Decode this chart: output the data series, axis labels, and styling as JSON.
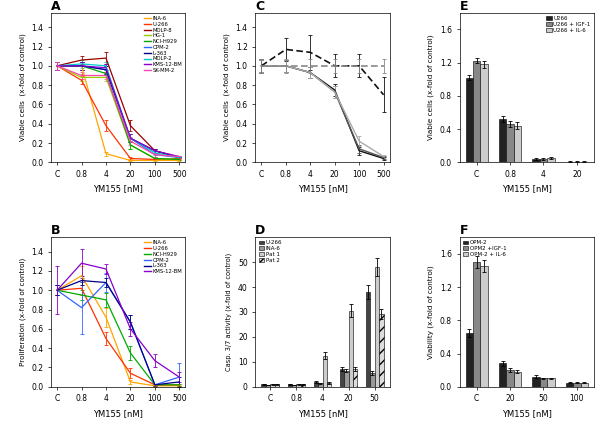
{
  "panel_A": {
    "title": "A",
    "xlabel": "YM155 [nM]",
    "ylabel": "Viable cells  (x-fold of control)",
    "xtick_labels": [
      "C",
      "0.8",
      "4",
      "20",
      "100",
      "500"
    ],
    "ylim": [
      0,
      1.55
    ],
    "yticks": [
      0.0,
      0.2,
      0.4,
      0.6,
      0.8,
      1.0,
      1.2,
      1.4
    ],
    "lines": {
      "INA-6": {
        "color": "#FFA500",
        "values": [
          1.0,
          1.0,
          0.09,
          0.02,
          0.02,
          0.02
        ]
      },
      "U-266": {
        "color": "#FF3300",
        "values": [
          1.0,
          0.85,
          0.38,
          0.04,
          0.03,
          0.04
        ]
      },
      "MOLP-8": {
        "color": "#990000",
        "values": [
          1.0,
          1.06,
          1.08,
          0.38,
          0.12,
          0.05
        ]
      },
      "HG-1": {
        "color": "#99CC00",
        "values": [
          1.0,
          0.88,
          0.88,
          0.18,
          0.04,
          0.03
        ]
      },
      "NCI-H929": {
        "color": "#00AA00",
        "values": [
          1.0,
          1.0,
          0.92,
          0.18,
          0.04,
          0.03
        ]
      },
      "OPM-2": {
        "color": "#3366FF",
        "values": [
          1.0,
          1.0,
          0.96,
          0.25,
          0.08,
          0.05
        ]
      },
      "L-363": {
        "color": "#000088",
        "values": [
          1.0,
          1.0,
          0.96,
          0.25,
          0.12,
          0.05
        ]
      },
      "MOLP-2": {
        "color": "#00CCCC",
        "values": [
          1.0,
          1.02,
          1.0,
          0.25,
          0.1,
          0.05
        ]
      },
      "KMS-12-BM": {
        "color": "#8800CC",
        "values": [
          1.0,
          1.0,
          0.98,
          0.25,
          0.12,
          0.06
        ]
      },
      "SK-MM-2": {
        "color": "#FF44AA",
        "values": [
          1.0,
          0.9,
          0.9,
          0.22,
          0.08,
          0.06
        ]
      }
    },
    "error_bars": {
      "INA-6": [
        0.04,
        0.04,
        0.02,
        0.01,
        0.01,
        0.01
      ],
      "U-266": [
        0.04,
        0.04,
        0.06,
        0.02,
        0.01,
        0.01
      ],
      "MOLP-8": [
        0.04,
        0.04,
        0.06,
        0.06,
        0.02,
        0.01
      ],
      "HG-1": [
        0.04,
        0.04,
        0.04,
        0.04,
        0.02,
        0.01
      ],
      "NCI-H929": [
        0.04,
        0.04,
        0.04,
        0.04,
        0.02,
        0.01
      ],
      "OPM-2": [
        0.04,
        0.04,
        0.04,
        0.04,
        0.02,
        0.01
      ],
      "L-363": [
        0.04,
        0.04,
        0.04,
        0.04,
        0.02,
        0.01
      ],
      "MOLP-2": [
        0.04,
        0.04,
        0.04,
        0.04,
        0.02,
        0.01
      ],
      "KMS-12-BM": [
        0.04,
        0.04,
        0.04,
        0.04,
        0.02,
        0.01
      ],
      "SK-MM-2": [
        0.04,
        0.04,
        0.04,
        0.04,
        0.02,
        0.01
      ]
    }
  },
  "panel_B": {
    "title": "B",
    "xlabel": "YM155 [nM]",
    "ylabel": "Proliferation (x-fold of control)",
    "xtick_labels": [
      "C",
      "0.8",
      "4",
      "20",
      "100",
      "500"
    ],
    "ylim": [
      0,
      1.55
    ],
    "yticks": [
      0.0,
      0.2,
      0.4,
      0.6,
      0.8,
      1.0,
      1.2,
      1.4
    ],
    "lines": {
      "INA-6": {
        "color": "#FFA500",
        "values": [
          1.0,
          1.15,
          0.72,
          0.05,
          0.01,
          0.01
        ]
      },
      "U-266": {
        "color": "#FF3300",
        "values": [
          1.0,
          1.02,
          0.5,
          0.14,
          0.02,
          0.02
        ]
      },
      "NCI-H929": {
        "color": "#00AA00",
        "values": [
          1.0,
          0.95,
          0.9,
          0.35,
          0.02,
          0.02
        ]
      },
      "OPM-2": {
        "color": "#3366FF",
        "values": [
          1.0,
          0.82,
          1.08,
          0.67,
          0.02,
          0.1
        ]
      },
      "L-363": {
        "color": "#000088",
        "values": [
          1.0,
          1.1,
          1.08,
          0.67,
          0.02,
          0.05
        ]
      },
      "KMS-12-BM": {
        "color": "#8800CC",
        "values": [
          1.0,
          1.28,
          1.22,
          0.6,
          0.27,
          0.1
        ]
      }
    },
    "error_bars": {
      "INA-6": [
        0.05,
        0.1,
        0.1,
        0.02,
        0.01,
        0.01
      ],
      "U-266": [
        0.05,
        0.07,
        0.07,
        0.05,
        0.01,
        0.01
      ],
      "NCI-H929": [
        0.05,
        0.05,
        0.07,
        0.07,
        0.01,
        0.01
      ],
      "OPM-2": [
        0.05,
        0.27,
        0.1,
        0.07,
        0.01,
        0.15
      ],
      "L-363": [
        0.05,
        0.05,
        0.05,
        0.07,
        0.01,
        0.05
      ],
      "KMS-12-BM": [
        0.25,
        0.15,
        0.05,
        0.07,
        0.07,
        0.05
      ]
    }
  },
  "panel_C": {
    "title": "C",
    "xlabel": "YM155 [nM]",
    "ylabel": "Viable cells  (x-fold of control)",
    "xtick_labels": [
      "C",
      "0.8",
      "4",
      "20",
      "100",
      "500"
    ],
    "ylim": [
      0,
      1.55
    ],
    "yticks": [
      0.0,
      0.2,
      0.4,
      0.6,
      0.8,
      1.0,
      1.2,
      1.4
    ],
    "solid_lines": [
      {
        "color": "#111111",
        "values": [
          1.0,
          1.0,
          0.93,
          0.75,
          0.12,
          0.04
        ],
        "err": [
          0.06,
          0.06,
          0.06,
          0.06,
          0.04,
          0.02
        ]
      },
      {
        "color": "#555555",
        "values": [
          1.0,
          1.0,
          0.93,
          0.73,
          0.14,
          0.05
        ],
        "err": [
          0.06,
          0.06,
          0.06,
          0.06,
          0.04,
          0.02
        ]
      },
      {
        "color": "#AAAAAA",
        "values": [
          1.0,
          1.0,
          0.93,
          0.73,
          0.22,
          0.06
        ],
        "err": [
          0.06,
          0.06,
          0.06,
          0.06,
          0.05,
          0.02
        ]
      }
    ],
    "dashed_lines": [
      {
        "color": "#111111",
        "values": [
          1.0,
          1.17,
          1.14,
          1.0,
          1.0,
          0.7
        ],
        "err": [
          0.07,
          0.12,
          0.18,
          0.12,
          0.12,
          0.18
        ]
      },
      {
        "color": "#888888",
        "values": [
          1.0,
          1.0,
          1.0,
          1.0,
          1.0,
          1.0
        ],
        "err": [
          0.07,
          0.07,
          0.07,
          0.07,
          0.07,
          0.07
        ]
      }
    ]
  },
  "panel_D": {
    "title": "D",
    "xlabel": "YM155 [nM]",
    "ylabel": "Casp. 3/7 activity (x-fold of control)",
    "xtick_labels": [
      "C",
      "0.8",
      "4",
      "20",
      "50"
    ],
    "ylim": [
      0,
      60
    ],
    "yticks": [
      0,
      10,
      20,
      30,
      40,
      50
    ],
    "categories": [
      "U-266",
      "INA-6",
      "Pat 1",
      "Pat 2"
    ],
    "colors": [
      "#444444",
      "#999999",
      "#CCCCCC",
      "#DDDDDD"
    ],
    "hatches": [
      "",
      "",
      "",
      "///"
    ],
    "values": [
      [
        1.0,
        0.8,
        1.0,
        1.0
      ],
      [
        1.0,
        0.8,
        1.0,
        1.0
      ],
      [
        2.0,
        1.5,
        12.5,
        1.5
      ],
      [
        7.0,
        6.5,
        30.5,
        7.0
      ],
      [
        38.0,
        5.5,
        48.0,
        29.0
      ]
    ],
    "errors": [
      [
        0.15,
        0.1,
        0.1,
        0.1
      ],
      [
        0.15,
        0.1,
        0.1,
        0.1
      ],
      [
        0.3,
        0.2,
        1.5,
        0.3
      ],
      [
        0.8,
        0.5,
        2.5,
        0.8
      ],
      [
        3.0,
        0.8,
        3.5,
        2.0
      ]
    ]
  },
  "panel_E": {
    "title": "E",
    "xlabel": "YM155 [nM]",
    "ylabel": "Viable cells (x-fold of control)",
    "xtick_labels": [
      "C",
      "0.8",
      "4",
      "20"
    ],
    "ylim": [
      0,
      1.8
    ],
    "yticks": [
      0.0,
      0.4,
      0.8,
      1.2,
      1.6
    ],
    "categories": [
      "U266",
      "U266 + IGF-1",
      "U266 + IL-6"
    ],
    "colors": [
      "#222222",
      "#888888",
      "#CCCCCC"
    ],
    "values": [
      [
        1.02,
        0.52,
        0.04,
        0.01
      ],
      [
        1.22,
        0.46,
        0.04,
        0.01
      ],
      [
        1.18,
        0.44,
        0.05,
        0.01
      ]
    ],
    "errors": [
      [
        0.03,
        0.04,
        0.01,
        0.005
      ],
      [
        0.03,
        0.04,
        0.01,
        0.005
      ],
      [
        0.04,
        0.04,
        0.01,
        0.005
      ]
    ]
  },
  "panel_F": {
    "title": "F",
    "xlabel": "YM155 [nM]",
    "ylabel": "Viability (x-fold of control)",
    "xtick_labels": [
      "C",
      "20",
      "50",
      "100"
    ],
    "ylim": [
      0,
      1.8
    ],
    "yticks": [
      0.0,
      0.4,
      0.8,
      1.2,
      1.6
    ],
    "categories": [
      "OPM-2",
      "OPM2 +IGF-1",
      "OPM-2 + IL-6"
    ],
    "colors": [
      "#222222",
      "#888888",
      "#CCCCCC"
    ],
    "values": [
      [
        0.65,
        0.28,
        0.12,
        0.05
      ],
      [
        1.5,
        0.2,
        0.1,
        0.05
      ],
      [
        1.45,
        0.18,
        0.1,
        0.05
      ]
    ],
    "errors": [
      [
        0.05,
        0.03,
        0.02,
        0.01
      ],
      [
        0.07,
        0.02,
        0.01,
        0.01
      ],
      [
        0.07,
        0.02,
        0.01,
        0.01
      ]
    ]
  }
}
